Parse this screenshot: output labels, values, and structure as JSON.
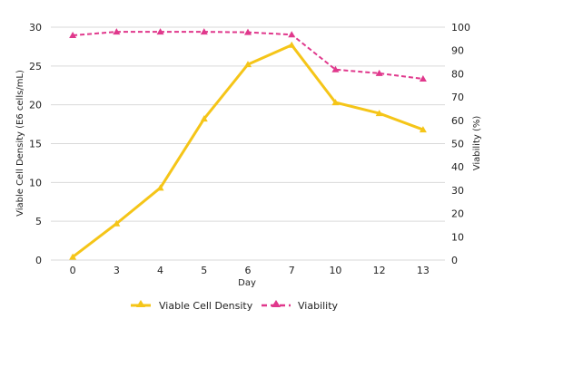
{
  "chart_data": {
    "type": "line",
    "categories": [
      "0",
      "3",
      "4",
      "5",
      "6",
      "7",
      "10",
      "12",
      "13"
    ],
    "xlabel": "Day",
    "ylabel": "Viable Cell Density (E6 cells/mL)",
    "y2label": "Viability (%)",
    "ylim": [
      0,
      30
    ],
    "y2lim": [
      0,
      100
    ],
    "yticks": [
      "0",
      "5",
      "10",
      "15",
      "20",
      "25",
      "30"
    ],
    "y2ticks": [
      "0",
      "10",
      "20",
      "30",
      "40",
      "50",
      "60",
      "70",
      "80",
      "90",
      "100"
    ],
    "grid": true,
    "legend_position": "bottom",
    "series": [
      {
        "name": "Viable Cell Density",
        "axis": "left",
        "color": "#f5c518",
        "style": "solid",
        "marker": "triangle",
        "values": [
          0.4,
          4.7,
          9.3,
          18.2,
          25.2,
          27.7,
          20.3,
          18.9,
          16.8
        ]
      },
      {
        "name": "Viability",
        "axis": "right",
        "color": "#e0388c",
        "style": "dashed",
        "marker": "triangle",
        "values": [
          96.5,
          98,
          98,
          98,
          97.8,
          96.8,
          81.8,
          80.2,
          77.8
        ]
      }
    ]
  }
}
